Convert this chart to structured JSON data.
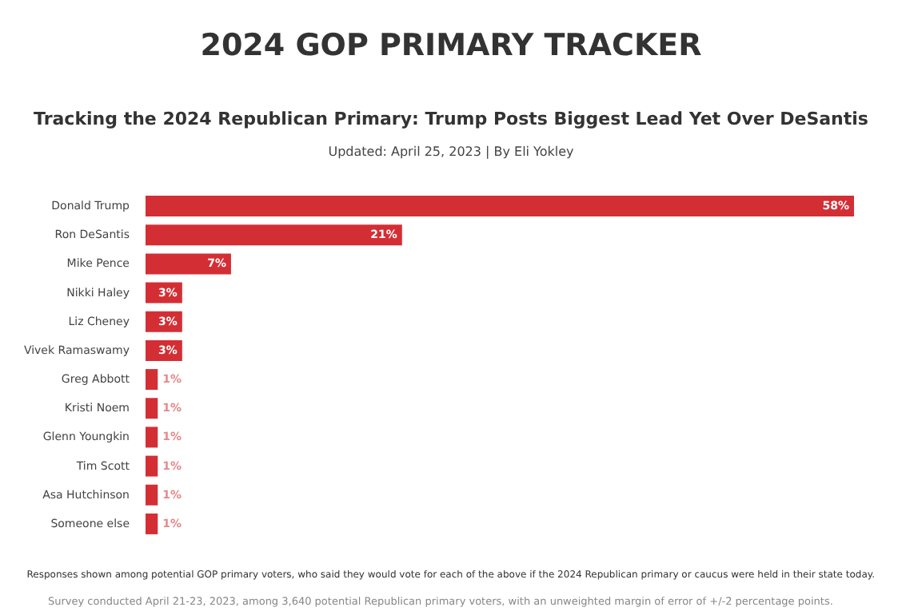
{
  "chart_data": {
    "type": "bar",
    "orientation": "horizontal",
    "title": "Tracking the 2024 Republican Primary: Trump Posts Biggest Lead Yet Over DeSantis",
    "subtitle": "Updated: April 25, 2023 | By Eli Yokley",
    "categories": [
      "Donald Trump",
      "Ron DeSantis",
      "Mike Pence",
      "Nikki Haley",
      "Liz Cheney",
      "Vivek Ramaswamy",
      "Greg Abbott",
      "Kristi Noem",
      "Glenn Youngkin",
      "Tim Scott",
      "Asa Hutchinson",
      "Someone else"
    ],
    "values": [
      58,
      21,
      7,
      3,
      3,
      3,
      1,
      1,
      1,
      1,
      1,
      1
    ],
    "value_labels": [
      "58%",
      "21%",
      "7%",
      "3%",
      "3%",
      "3%",
      "1%",
      "1%",
      "1%",
      "1%",
      "1%",
      "1%"
    ],
    "color": "#d42e35",
    "annotations": [
      "2024 GOP PRIMARY TRACKER",
      "Responses shown among potential GOP primary voters, who said they would vote for each of the above if the 2024 Republican primary or caucus were held in their state today.",
      "Survey conducted April 21-23, 2023, among 3,640 potential Republican primary voters, with an unweighted margin of error of +/-2 percentage points."
    ],
    "grid": false
  }
}
